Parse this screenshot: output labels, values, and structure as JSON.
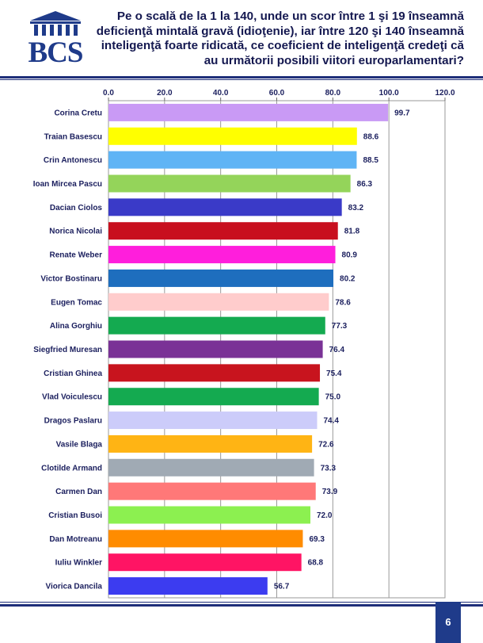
{
  "logo": {
    "text": "BCS"
  },
  "page_number": "6",
  "colors": {
    "accent": "#1f2f7a",
    "logo": "#1f3b8a"
  },
  "chart_data": {
    "type": "bar",
    "orientation": "horizontal",
    "title": "Pe o scală de la 1 la 140, unde un scor între 1 şi 19 înseamnă deficienţă mintală gravă (idioţenie), iar între 120 şi 140 înseamnă inteligenţă foarte ridicată, ce coeficient de inteligenţă credeţi că au următorii posibili viitori europarlamentari?",
    "title_lines": [
      "Pe o scală de la 1 la 140, unde un scor între 1 şi 19 înseamnă",
      "deficienţă mintală gravă (idioţenie), iar între 120 şi 140 înseamnă",
      "inteligenţă foarte ridicată, ce coeficient de inteligenţă credeţi că",
      "au următorii posibili viitori europarlamentari?"
    ],
    "xlim": [
      0,
      120
    ],
    "x_ticks": [
      0,
      20,
      40,
      60,
      80,
      100,
      120
    ],
    "x_tick_labels": [
      "0.0",
      "20.0",
      "40.0",
      "60.0",
      "80.0",
      "100.0",
      "120.0"
    ],
    "axis_position": "top",
    "grid": true,
    "categories": [
      "Corina Cretu",
      "Traian Basescu",
      "Crin Antonescu",
      "Ioan Mircea Pascu",
      "Dacian Ciolos",
      "Norica Nicolai",
      "Renate Weber",
      "Victor Bostinaru",
      "Eugen Tomac",
      "Alina Gorghiu",
      "Siegfried Muresan",
      "Cristian Ghinea",
      "Vlad Voiculescu",
      "Dragos Paslaru",
      "Vasile Blaga",
      "Clotilde Armand",
      "Carmen Dan",
      "Cristian Busoi",
      "Dan Motreanu",
      "Iuliu Winkler",
      "Viorica Dancila"
    ],
    "values": [
      99.7,
      88.6,
      88.5,
      86.3,
      83.2,
      81.8,
      80.9,
      80.2,
      78.6,
      77.3,
      76.4,
      75.4,
      75.0,
      74.4,
      72.6,
      73.3,
      73.9,
      72.0,
      69.3,
      68.8,
      56.7
    ],
    "value_labels": [
      "99.7",
      "88.6",
      "88.5",
      "86.3",
      "83.2",
      "81.8",
      "80.9",
      "80.2",
      "78.6",
      "77.3",
      "76.4",
      "75.4",
      "75.0",
      "74.4",
      "72.6",
      "73.3",
      "73.9",
      "72.0",
      "69.3",
      "68.8",
      "56.7"
    ],
    "bar_colors": [
      "#c99af5",
      "#ffff00",
      "#5fb4f5",
      "#94d45a",
      "#3a3ac8",
      "#c80f1e",
      "#ff1edc",
      "#1e6ebe",
      "#ffcccc",
      "#14aa50",
      "#7a3296",
      "#c8141e",
      "#14aa50",
      "#ccccfa",
      "#ffb414",
      "#a0aab4",
      "#ff7878",
      "#8cf050",
      "#ff8c00",
      "#ff1464",
      "#3c3cf0"
    ]
  }
}
